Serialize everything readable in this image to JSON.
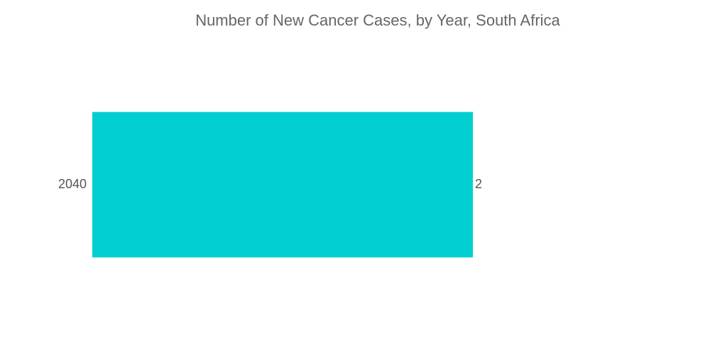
{
  "chart_data": {
    "type": "bar",
    "orientation": "horizontal",
    "title": "Number of New Cancer Cases, by Year, South Africa",
    "categories": [
      "2040"
    ],
    "values": [
      2
    ],
    "color": "#00ced1",
    "xlim": [
      0,
      2
    ]
  }
}
